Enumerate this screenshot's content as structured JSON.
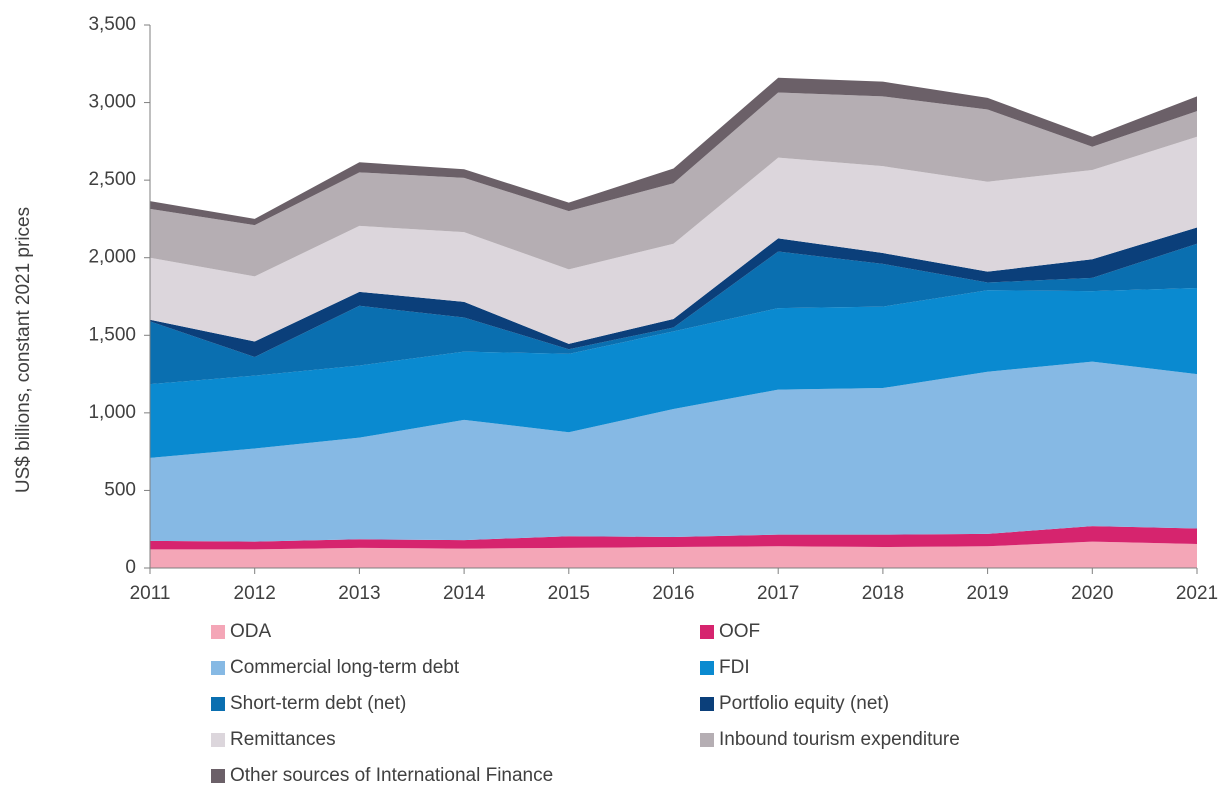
{
  "chart_data": {
    "type": "stacked_area",
    "y_label": "US$ billions, constant 2021 prices",
    "x": [
      2011,
      2012,
      2013,
      2014,
      2015,
      2016,
      2017,
      2018,
      2019,
      2020,
      2021
    ],
    "xlim": [
      2011,
      2021
    ],
    "ylim": [
      0,
      3500
    ],
    "yticks": [
      0,
      500,
      {
        "value": 1000,
        "label": "1,000"
      },
      {
        "value": 1500,
        "label": "1,500"
      },
      {
        "value": 2000,
        "label": "2,000"
      },
      {
        "value": 2500,
        "label": "2,500"
      },
      {
        "value": 3000,
        "label": "3,000"
      },
      {
        "value": 3500,
        "label": "3,500"
      }
    ],
    "grid": false,
    "series": [
      {
        "name": "ODA",
        "color": "#f4a6b7",
        "values": [
          120,
          120,
          130,
          125,
          130,
          135,
          140,
          135,
          140,
          170,
          155
        ]
      },
      {
        "name": "OOF",
        "color": "#d6246e",
        "values": [
          55,
          50,
          55,
          55,
          75,
          65,
          75,
          80,
          80,
          100,
          100
        ]
      },
      {
        "name": "Commercial long-term debt",
        "color": "#86b9e4",
        "values": [
          535,
          600,
          655,
          775,
          670,
          825,
          935,
          945,
          1045,
          1060,
          995
        ]
      },
      {
        "name": "FDI",
        "color": "#0a8ad0",
        "values": [
          475,
          470,
          465,
          440,
          505,
          500,
          525,
          525,
          525,
          455,
          555
        ]
      },
      {
        "name": "Short-term debt (net)",
        "color": "#0a6fb0",
        "values": [
          405,
          120,
          385,
          220,
          30,
          25,
          365,
          275,
          50,
          85,
          285
        ]
      },
      {
        "name": "Portfolio equity (net)",
        "color": "#0b3f7a",
        "values": [
          10,
          100,
          90,
          100,
          35,
          55,
          85,
          70,
          70,
          120,
          105
        ]
      },
      {
        "name": "Remittances",
        "color": "#dcd6dc",
        "values": [
          400,
          420,
          425,
          450,
          480,
          485,
          520,
          560,
          580,
          575,
          585
        ]
      },
      {
        "name": "Inbound tourism expenditure",
        "color": "#b5aeb3",
        "values": [
          315,
          330,
          345,
          350,
          375,
          390,
          420,
          450,
          465,
          150,
          165
        ]
      },
      {
        "name": "Other sources of International Finance",
        "color": "#6b6068",
        "values": [
          50,
          40,
          65,
          55,
          55,
          95,
          95,
          95,
          75,
          65,
          95
        ]
      }
    ]
  }
}
